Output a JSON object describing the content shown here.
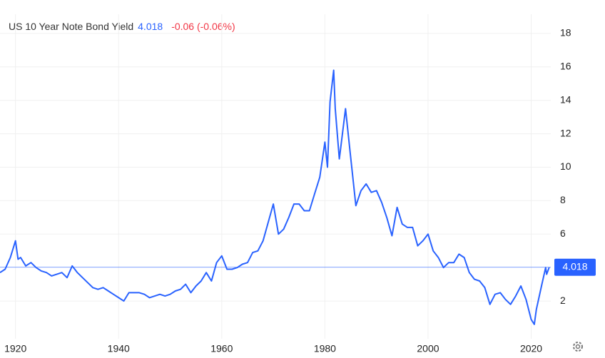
{
  "chart_data": {
    "type": "line",
    "title": "US 10 Year Note Bond Yield",
    "last_value": 4.018,
    "change": "-0.06 (-0.06%)",
    "color": "#2962ff",
    "grid": true,
    "xlim": [
      1917,
      2023.8
    ],
    "xticks": [
      1920,
      1940,
      1960,
      1980,
      2000,
      2020
    ],
    "ylim": [
      0,
      20
    ],
    "yticks": [
      2,
      6,
      8,
      10,
      12,
      14,
      16,
      18
    ],
    "x": [
      1917,
      1918,
      1919,
      1920,
      1920.5,
      1921,
      1922,
      1923,
      1924,
      1925,
      1926,
      1927,
      1928,
      1929,
      1930,
      1931,
      1932,
      1933,
      1934,
      1935,
      1936,
      1937,
      1938,
      1939,
      1940,
      1941,
      1942,
      1943,
      1944,
      1945,
      1946,
      1947,
      1948,
      1949,
      1950,
      1951,
      1952,
      1953,
      1954,
      1955,
      1956,
      1957,
      1958,
      1959,
      1960,
      1961,
      1962,
      1963,
      1964,
      1965,
      1966,
      1967,
      1968,
      1969,
      1970,
      1971,
      1972,
      1973,
      1974,
      1975,
      1976,
      1977,
      1978,
      1979,
      1980,
      1980.5,
      1981,
      1981.7,
      1982,
      1982.8,
      1983,
      1984,
      1985,
      1986,
      1987,
      1988,
      1989,
      1990,
      1991,
      1992,
      1993,
      1994,
      1995,
      1996,
      1997,
      1998,
      1999,
      2000,
      2001,
      2002,
      2003,
      2004,
      2005,
      2006,
      2007,
      2008,
      2009,
      2010,
      2011,
      2012,
      2013,
      2014,
      2015,
      2016,
      2017,
      2018,
      2019,
      2020,
      2020.6,
      2021,
      2022,
      2022.8,
      2023,
      2023.5
    ],
    "values": [
      3.7,
      3.9,
      4.6,
      5.6,
      4.5,
      4.6,
      4.1,
      4.3,
      4.0,
      3.8,
      3.7,
      3.5,
      3.6,
      3.7,
      3.4,
      4.1,
      3.7,
      3.4,
      3.1,
      2.8,
      2.7,
      2.8,
      2.6,
      2.4,
      2.2,
      2.0,
      2.5,
      2.5,
      2.5,
      2.4,
      2.2,
      2.3,
      2.4,
      2.3,
      2.4,
      2.6,
      2.7,
      3.0,
      2.5,
      2.9,
      3.2,
      3.7,
      3.2,
      4.3,
      4.7,
      3.9,
      3.9,
      4.0,
      4.2,
      4.3,
      4.9,
      5.0,
      5.6,
      6.7,
      7.8,
      6.0,
      6.3,
      7.0,
      7.8,
      7.8,
      7.4,
      7.4,
      8.4,
      9.4,
      11.5,
      10.0,
      13.9,
      15.8,
      13.5,
      10.5,
      11.0,
      13.5,
      10.6,
      7.7,
      8.6,
      9.0,
      8.5,
      8.6,
      7.9,
      7.0,
      5.9,
      7.6,
      6.6,
      6.4,
      6.4,
      5.3,
      5.6,
      6.0,
      5.0,
      4.6,
      4.0,
      4.3,
      4.3,
      4.8,
      4.6,
      3.7,
      3.3,
      3.2,
      2.8,
      1.8,
      2.4,
      2.5,
      2.1,
      1.8,
      2.3,
      2.9,
      2.1,
      0.9,
      0.6,
      1.5,
      2.9,
      4.0,
      3.6,
      4.018
    ]
  }
}
